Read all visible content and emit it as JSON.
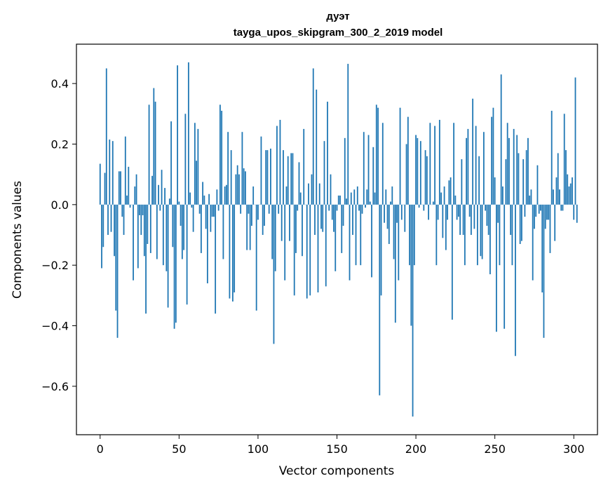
{
  "chart_data": {
    "type": "bar",
    "title": "дуэт",
    "subtitle": "tayga_upos_skipgram_300_2_2019 model",
    "xlabel": "Vector components",
    "ylabel": "Components values",
    "xlim": [
      -15,
      315
    ],
    "ylim": [
      -0.76,
      0.53
    ],
    "xticks": [
      0,
      50,
      100,
      150,
      200,
      250,
      300
    ],
    "xtick_labels": [
      "0",
      "50",
      "100",
      "150",
      "200",
      "250",
      "300"
    ],
    "yticks": [
      -0.6,
      -0.4,
      -0.2,
      0.0,
      0.2,
      0.4
    ],
    "ytick_labels": [
      "−0.6",
      "−0.4",
      "−0.2",
      "0.0",
      "0.2",
      "0.4"
    ],
    "grid": false,
    "bar_color": "#1f77b4",
    "values": [
      0.135,
      -0.21,
      -0.14,
      0.105,
      0.45,
      -0.1,
      0.215,
      -0.09,
      0.21,
      -0.17,
      -0.35,
      -0.44,
      0.11,
      0.11,
      -0.04,
      -0.1,
      0.225,
      0.03,
      0.125,
      -0.01,
      0.0,
      -0.25,
      0.06,
      0.1,
      -0.21,
      -0.035,
      -0.1,
      -0.035,
      -0.17,
      -0.36,
      -0.13,
      0.33,
      -0.16,
      0.095,
      0.385,
      0.34,
      -0.18,
      0.065,
      -0.02,
      0.115,
      -0.2,
      0.055,
      -0.22,
      -0.34,
      0.02,
      0.275,
      -0.14,
      -0.41,
      -0.39,
      0.46,
      0.01,
      -0.07,
      -0.18,
      -0.15,
      0.3,
      -0.33,
      0.47,
      0.04,
      -0.01,
      -0.09,
      0.27,
      0.145,
      0.25,
      -0.03,
      -0.16,
      0.075,
      0.03,
      -0.08,
      -0.26,
      0.035,
      -0.09,
      -0.04,
      -0.04,
      -0.36,
      0.05,
      -0.02,
      0.33,
      0.31,
      -0.18,
      0.06,
      0.065,
      0.24,
      -0.31,
      0.18,
      -0.32,
      -0.29,
      0.1,
      0.13,
      0.1,
      -0.03,
      0.24,
      0.12,
      0.11,
      -0.15,
      -0.03,
      -0.15,
      -0.07,
      0.06,
      0.0,
      -0.35,
      -0.05,
      0.0,
      0.225,
      -0.1,
      -0.07,
      0.18,
      0.18,
      -0.03,
      0.185,
      -0.18,
      -0.46,
      -0.22,
      0.26,
      -0.03,
      0.28,
      -0.12,
      0.18,
      -0.25,
      0.06,
      0.16,
      -0.12,
      0.17,
      0.17,
      -0.3,
      -0.16,
      -0.02,
      0.14,
      0.04,
      -0.17,
      0.25,
      0.0,
      -0.31,
      0.07,
      -0.3,
      0.1,
      0.45,
      -0.1,
      0.38,
      -0.29,
      0.07,
      -0.08,
      -0.09,
      0.21,
      -0.27,
      0.34,
      -0.02,
      0.1,
      -0.05,
      -0.09,
      -0.22,
      -0.02,
      0.03,
      0.03,
      -0.16,
      -0.07,
      0.22,
      0.02,
      0.465,
      -0.25,
      0.04,
      -0.1,
      0.05,
      -0.2,
      0.06,
      -0.02,
      -0.2,
      -0.03,
      0.24,
      -0.01,
      0.05,
      0.23,
      0.01,
      -0.24,
      0.19,
      0.04,
      0.33,
      0.32,
      -0.63,
      -0.3,
      0.27,
      -0.06,
      0.05,
      -0.08,
      -0.13,
      0.01,
      0.06,
      -0.18,
      -0.39,
      -0.06,
      -0.25,
      0.32,
      -0.05,
      0.0,
      -0.09,
      0.2,
      0.29,
      -0.2,
      -0.4,
      -0.7,
      -0.2,
      0.23,
      0.22,
      -0.01,
      0.21,
      0.0,
      -0.02,
      0.18,
      0.16,
      -0.05,
      0.27,
      0.0,
      0.01,
      0.26,
      -0.2,
      -0.05,
      0.28,
      0.04,
      -0.11,
      0.06,
      -0.15,
      -0.05,
      0.08,
      0.09,
      -0.38,
      0.27,
      0.03,
      -0.05,
      -0.04,
      -0.1,
      0.15,
      -0.1,
      -0.2,
      0.22,
      0.25,
      -0.04,
      -0.1,
      0.35,
      -0.08,
      0.26,
      -0.2,
      0.16,
      -0.17,
      -0.18,
      0.24,
      -0.02,
      -0.07,
      -0.1,
      -0.23,
      0.29,
      0.32,
      0.09,
      -0.42,
      -0.06,
      -0.2,
      0.43,
      0.06,
      -0.41,
      0.15,
      0.27,
      0.22,
      -0.1,
      -0.2,
      0.25,
      -0.5,
      0.23,
      0.17,
      -0.13,
      -0.12,
      0.15,
      -0.04,
      0.18,
      0.22,
      0.03,
      0.05,
      -0.25,
      -0.08,
      -0.04,
      0.13,
      -0.03,
      -0.02,
      -0.29,
      -0.44,
      -0.08,
      -0.05,
      -0.05,
      -0.16,
      0.31,
      0.05,
      -0.12,
      0.09,
      0.17,
      0.05,
      -0.02,
      -0.02,
      0.3,
      0.18,
      0.1,
      0.06,
      0.07,
      0.09,
      -0.05,
      0.42,
      -0.06
    ]
  }
}
